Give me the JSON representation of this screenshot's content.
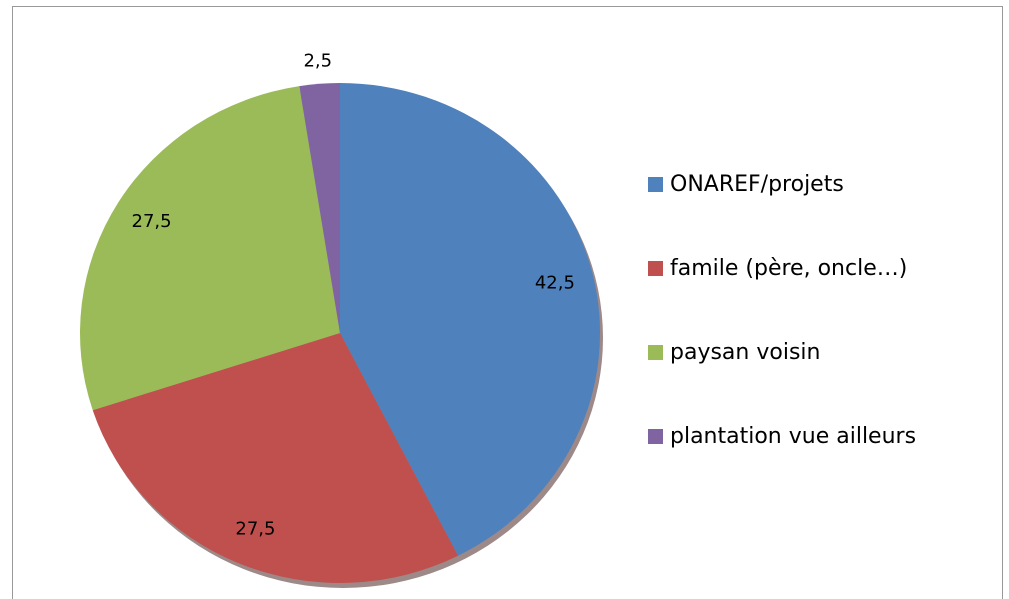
{
  "chart_data": {
    "type": "pie",
    "categories": [
      "ONAREF/projets",
      "famile (père, oncle…)",
      "paysan voisin",
      "plantation vue ailleurs"
    ],
    "values": [
      42.5,
      27.5,
      27.5,
      2.5
    ],
    "value_labels": [
      "42,5",
      "27,5",
      "27,5",
      "2,5"
    ],
    "colors": [
      "#4f81bd",
      "#c0504d",
      "#9bbb59",
      "#8064a2"
    ],
    "legend": "right"
  }
}
